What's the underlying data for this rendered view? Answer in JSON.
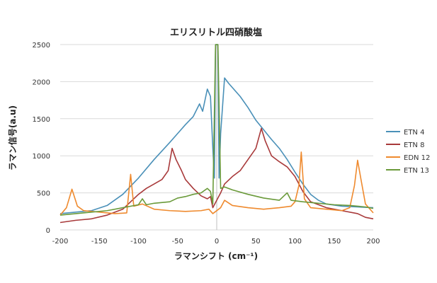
{
  "chart_data": {
    "type": "line",
    "title": "エリスリトル四硝酸塩",
    "xlabel": "ラマンシフト (cm⁻¹)",
    "ylabel": "ラマン信号(a.u)",
    "xlim": [
      -200,
      200
    ],
    "ylim": [
      0,
      2500
    ],
    "xticks": [
      -200,
      -150,
      -100,
      -50,
      0,
      50,
      100,
      150,
      200
    ],
    "yticks": [
      0,
      500,
      1000,
      1500,
      2000,
      2500
    ],
    "grid": true,
    "legend_position": "right",
    "series": [
      {
        "name": "ETN 4",
        "color": "#4a90b8",
        "points": [
          [
            -200,
            220
          ],
          [
            -180,
            240
          ],
          [
            -160,
            260
          ],
          [
            -140,
            330
          ],
          [
            -120,
            480
          ],
          [
            -100,
            700
          ],
          [
            -80,
            950
          ],
          [
            -60,
            1180
          ],
          [
            -50,
            1300
          ],
          [
            -40,
            1420
          ],
          [
            -30,
            1530
          ],
          [
            -22,
            1700
          ],
          [
            -18,
            1600
          ],
          [
            -12,
            1900
          ],
          [
            -8,
            1800
          ],
          [
            -5,
            1100
          ],
          [
            -3,
            700
          ],
          [
            -1.5,
            2500
          ],
          [
            1.5,
            2500
          ],
          [
            3,
            700
          ],
          [
            5,
            1300
          ],
          [
            10,
            2050
          ],
          [
            15,
            1980
          ],
          [
            30,
            1800
          ],
          [
            40,
            1650
          ],
          [
            50,
            1480
          ],
          [
            60,
            1350
          ],
          [
            70,
            1220
          ],
          [
            80,
            1100
          ],
          [
            90,
            950
          ],
          [
            100,
            780
          ],
          [
            110,
            620
          ],
          [
            120,
            480
          ],
          [
            130,
            400
          ],
          [
            140,
            350
          ],
          [
            160,
            320
          ],
          [
            180,
            310
          ],
          [
            200,
            300
          ]
        ]
      },
      {
        "name": "ETN 8",
        "color": "#a8393a",
        "points": [
          [
            -200,
            100
          ],
          [
            -180,
            130
          ],
          [
            -160,
            150
          ],
          [
            -140,
            200
          ],
          [
            -120,
            280
          ],
          [
            -110,
            380
          ],
          [
            -100,
            480
          ],
          [
            -90,
            560
          ],
          [
            -80,
            620
          ],
          [
            -70,
            680
          ],
          [
            -62,
            800
          ],
          [
            -57,
            1100
          ],
          [
            -52,
            950
          ],
          [
            -45,
            800
          ],
          [
            -40,
            680
          ],
          [
            -30,
            560
          ],
          [
            -20,
            460
          ],
          [
            -12,
            420
          ],
          [
            -8,
            450
          ],
          [
            -5,
            300
          ],
          [
            5,
            500
          ],
          [
            10,
            620
          ],
          [
            20,
            720
          ],
          [
            30,
            800
          ],
          [
            40,
            950
          ],
          [
            50,
            1100
          ],
          [
            57,
            1370
          ],
          [
            62,
            1200
          ],
          [
            70,
            1000
          ],
          [
            80,
            920
          ],
          [
            90,
            850
          ],
          [
            100,
            720
          ],
          [
            110,
            520
          ],
          [
            120,
            380
          ],
          [
            140,
            300
          ],
          [
            160,
            260
          ],
          [
            180,
            220
          ],
          [
            190,
            170
          ],
          [
            200,
            150
          ]
        ]
      },
      {
        "name": "EDN 12",
        "color": "#ef8a2e",
        "points": [
          [
            -200,
            200
          ],
          [
            -192,
            300
          ],
          [
            -185,
            550
          ],
          [
            -178,
            320
          ],
          [
            -170,
            260
          ],
          [
            -150,
            240
          ],
          [
            -130,
            220
          ],
          [
            -115,
            230
          ],
          [
            -110,
            750
          ],
          [
            -106,
            320
          ],
          [
            -95,
            350
          ],
          [
            -80,
            280
          ],
          [
            -60,
            260
          ],
          [
            -40,
            250
          ],
          [
            -20,
            260
          ],
          [
            -10,
            280
          ],
          [
            -5,
            220
          ],
          [
            5,
            300
          ],
          [
            10,
            400
          ],
          [
            20,
            330
          ],
          [
            40,
            300
          ],
          [
            60,
            280
          ],
          [
            80,
            300
          ],
          [
            95,
            320
          ],
          [
            100,
            380
          ],
          [
            105,
            600
          ],
          [
            108,
            1050
          ],
          [
            112,
            420
          ],
          [
            120,
            300
          ],
          [
            140,
            280
          ],
          [
            160,
            260
          ],
          [
            170,
            300
          ],
          [
            176,
            600
          ],
          [
            180,
            940
          ],
          [
            184,
            700
          ],
          [
            190,
            350
          ],
          [
            200,
            230
          ]
        ]
      },
      {
        "name": "ETN 13",
        "color": "#6a9a3a",
        "points": [
          [
            -200,
            200
          ],
          [
            -180,
            220
          ],
          [
            -160,
            240
          ],
          [
            -140,
            260
          ],
          [
            -120,
            300
          ],
          [
            -100,
            340
          ],
          [
            -95,
            420
          ],
          [
            -90,
            340
          ],
          [
            -80,
            360
          ],
          [
            -60,
            380
          ],
          [
            -50,
            430
          ],
          [
            -40,
            450
          ],
          [
            -30,
            480
          ],
          [
            -20,
            500
          ],
          [
            -12,
            560
          ],
          [
            -8,
            520
          ],
          [
            -5,
            350
          ],
          [
            -1.5,
            2500
          ],
          [
            1.5,
            2500
          ],
          [
            5,
            560
          ],
          [
            10,
            580
          ],
          [
            20,
            540
          ],
          [
            40,
            480
          ],
          [
            60,
            430
          ],
          [
            80,
            400
          ],
          [
            90,
            500
          ],
          [
            95,
            400
          ],
          [
            110,
            380
          ],
          [
            130,
            360
          ],
          [
            150,
            340
          ],
          [
            170,
            330
          ],
          [
            190,
            310
          ],
          [
            200,
            290
          ]
        ]
      }
    ]
  }
}
